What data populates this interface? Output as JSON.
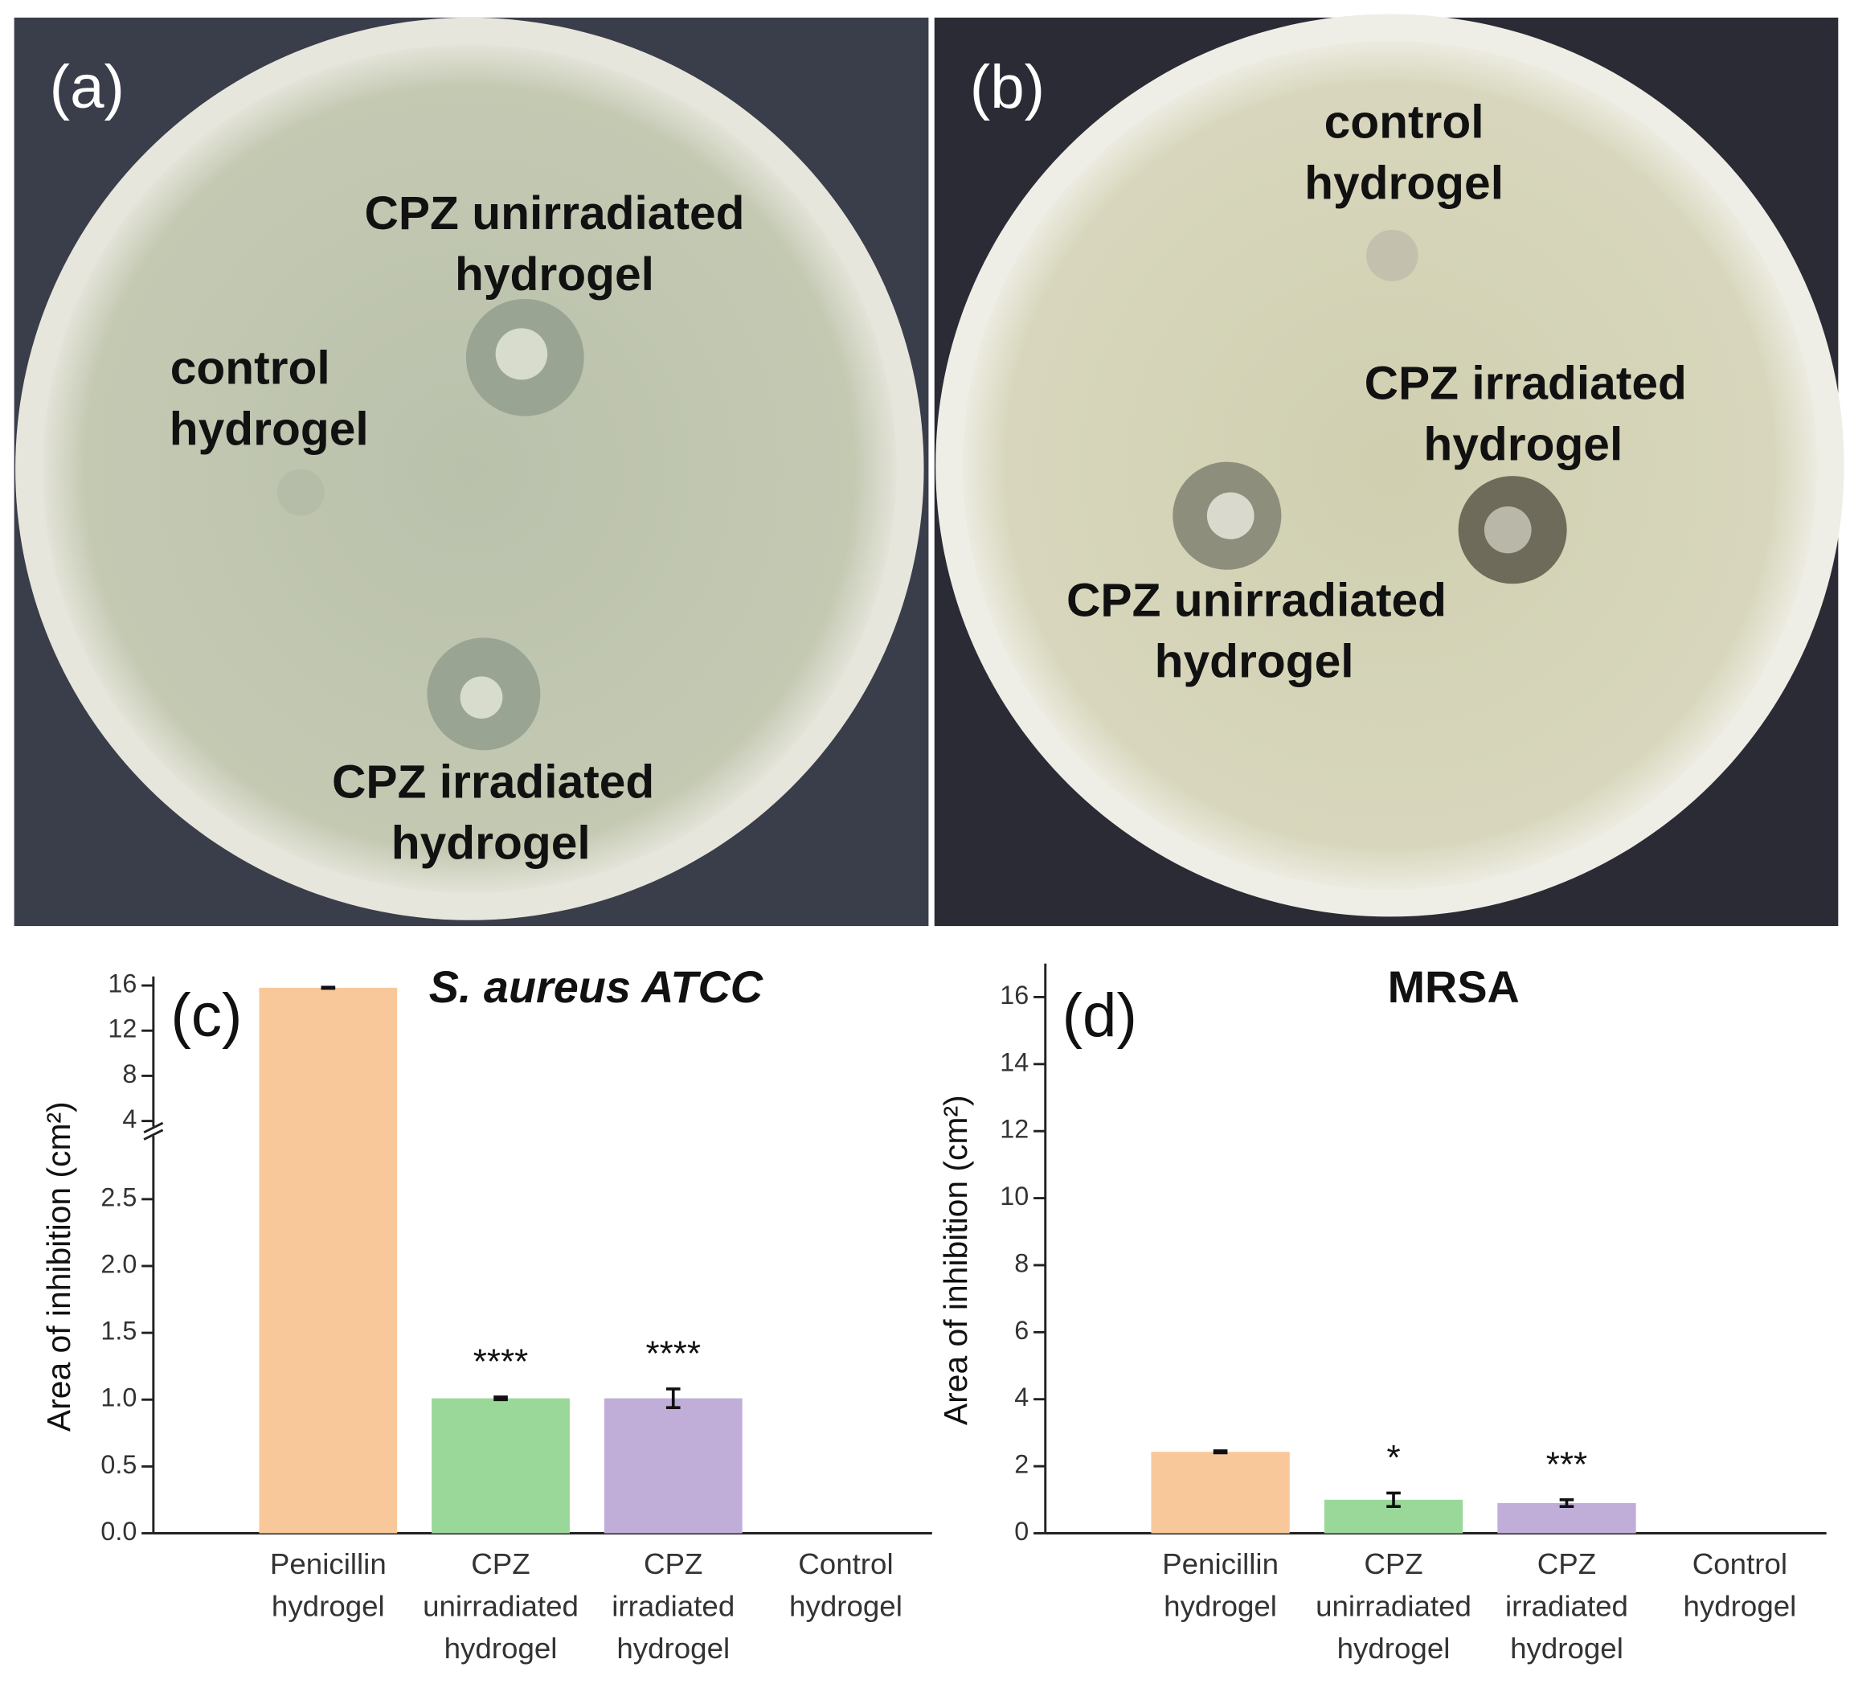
{
  "photos": [
    {
      "label": "(a)",
      "annotations": [
        [
          "CPZ unirradiated",
          "hydrogel"
        ],
        [
          "control",
          "hydrogel"
        ],
        [
          "CPZ irradiated",
          "hydrogel"
        ]
      ]
    },
    {
      "label": "(b)",
      "annotations": [
        [
          "control",
          "hydrogel"
        ],
        [
          "CPZ irradiated",
          "hydrogel"
        ],
        [
          "CPZ unirradiated",
          "hydrogel"
        ]
      ]
    }
  ],
  "chart_data": [
    {
      "type": "bar",
      "label": "(c)",
      "title": "S. aureus ATCC",
      "ylabel": "Area of inhibition (cm²)",
      "categories": [
        [
          "Penicillin",
          "hydrogel"
        ],
        [
          "CPZ",
          "unirradiated",
          "hydrogel"
        ],
        [
          "CPZ",
          "irradiated",
          "hydrogel"
        ],
        [
          "Control",
          "hydrogel"
        ]
      ],
      "values": [
        15.8,
        1.01,
        1.01,
        0
      ],
      "errors": [
        0.05,
        0.01,
        0.07,
        0
      ],
      "significance": [
        null,
        "****",
        "****",
        null
      ],
      "colors": [
        "#f9c89a",
        "#9ad89a",
        "#c0aed8",
        "#cccccc"
      ],
      "ylim": [
        0,
        16.8
      ],
      "ybreak": [
        3,
        3.2
      ],
      "yticks": [
        {
          "value": 0,
          "label": "0.0"
        },
        0.5,
        {
          "value": 1,
          "label": "1.0"
        },
        1.5,
        {
          "value": 2,
          "label": "2.0"
        },
        2.5,
        4,
        8,
        12,
        16
      ]
    },
    {
      "type": "bar",
      "label": "(d)",
      "title": "MRSA",
      "ylabel": "Area of inhibition (cm²)",
      "categories": [
        [
          "Penicillin",
          "hydrogel"
        ],
        [
          "CPZ",
          "unirradiated",
          "hydrogel"
        ],
        [
          "CPZ",
          "irradiated",
          "hydrogel"
        ],
        [
          "Control",
          "hydrogel"
        ]
      ],
      "values": [
        2.43,
        1.0,
        0.9,
        0
      ],
      "errors": [
        0.03,
        0.2,
        0.1,
        0
      ],
      "significance": [
        null,
        "*",
        "***",
        null
      ],
      "colors": [
        "#f9c89a",
        "#9ad89a",
        "#c0aed8",
        "#cccccc"
      ],
      "ylim": [
        0,
        17
      ],
      "yticks": [
        0,
        2,
        4,
        6,
        8,
        10,
        12,
        14,
        16
      ]
    }
  ]
}
